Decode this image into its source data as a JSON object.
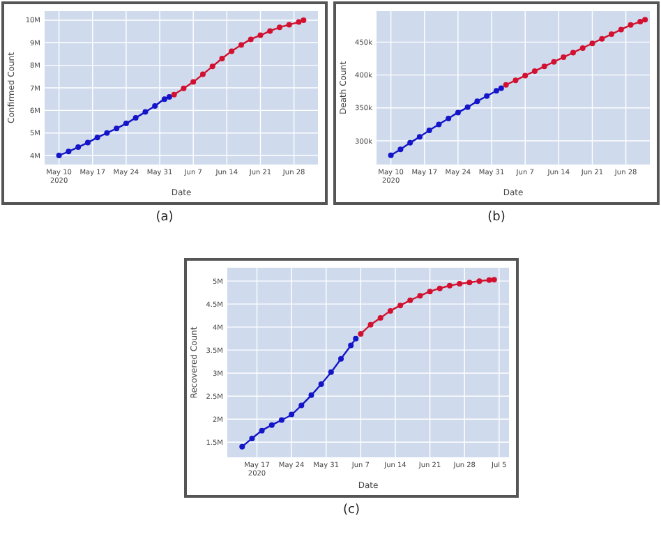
{
  "chart_data": [
    {
      "type": "line",
      "title": "(a)",
      "xlabel": "Date",
      "ylabel": "Confirmed Count",
      "marker": "circle",
      "grid": true,
      "xlim": [
        "2020-05-07",
        "2020-07-03"
      ],
      "xticks": [
        {
          "value": "2020-05-10",
          "label": "May 10\n2020"
        },
        {
          "value": "2020-05-17",
          "label": "May 17"
        },
        {
          "value": "2020-05-24",
          "label": "May 24"
        },
        {
          "value": "2020-05-31",
          "label": "May 31"
        },
        {
          "value": "2020-06-07",
          "label": "Jun 7"
        },
        {
          "value": "2020-06-14",
          "label": "Jun 14"
        },
        {
          "value": "2020-06-21",
          "label": "Jun 21"
        },
        {
          "value": "2020-06-28",
          "label": "Jun 28"
        }
      ],
      "ylim": [
        3600000,
        10400000
      ],
      "yticks": [
        {
          "value": 4000000,
          "label": "4M"
        },
        {
          "value": 5000000,
          "label": "5M"
        },
        {
          "value": 6000000,
          "label": "6M"
        },
        {
          "value": 7000000,
          "label": "7M"
        },
        {
          "value": 8000000,
          "label": "8M"
        },
        {
          "value": 9000000,
          "label": "9M"
        },
        {
          "value": 10000000,
          "label": "10M"
        }
      ],
      "series": [
        {
          "color": "#1414c8",
          "x": [
            "2020-05-10",
            "2020-05-12",
            "2020-05-14",
            "2020-05-16",
            "2020-05-18",
            "2020-05-20",
            "2020-05-22",
            "2020-05-24",
            "2020-05-26",
            "2020-05-28",
            "2020-05-30",
            "2020-06-01",
            "2020-06-02"
          ],
          "values": [
            4000000,
            4180000,
            4370000,
            4570000,
            4800000,
            5000000,
            5200000,
            5420000,
            5670000,
            5930000,
            6200000,
            6500000,
            6600000
          ]
        },
        {
          "color": "#d21030",
          "x": [
            "2020-06-03",
            "2020-06-05",
            "2020-06-07",
            "2020-06-09",
            "2020-06-11",
            "2020-06-13",
            "2020-06-15",
            "2020-06-17",
            "2020-06-19",
            "2020-06-21",
            "2020-06-23",
            "2020-06-25",
            "2020-06-27",
            "2020-06-29",
            "2020-06-30"
          ],
          "values": [
            6700000,
            6980000,
            7260000,
            7600000,
            7950000,
            8300000,
            8620000,
            8900000,
            9150000,
            9330000,
            9520000,
            9680000,
            9800000,
            9920000,
            10000000
          ]
        }
      ]
    },
    {
      "type": "line",
      "title": "(b)",
      "xlabel": "Date",
      "ylabel": "Death Count",
      "marker": "circle",
      "grid": true,
      "xlim": [
        "2020-05-07",
        "2020-07-03"
      ],
      "xticks": [
        {
          "value": "2020-05-10",
          "label": "May 10\n2020"
        },
        {
          "value": "2020-05-17",
          "label": "May 17"
        },
        {
          "value": "2020-05-24",
          "label": "May 24"
        },
        {
          "value": "2020-05-31",
          "label": "May 31"
        },
        {
          "value": "2020-06-07",
          "label": "Jun 7"
        },
        {
          "value": "2020-06-14",
          "label": "Jun 14"
        },
        {
          "value": "2020-06-21",
          "label": "Jun 21"
        },
        {
          "value": "2020-06-28",
          "label": "Jun 28"
        }
      ],
      "ylim": [
        264000,
        497000
      ],
      "yticks": [
        {
          "value": 300000,
          "label": "300k"
        },
        {
          "value": 350000,
          "label": "350k"
        },
        {
          "value": 400000,
          "label": "400k"
        },
        {
          "value": 450000,
          "label": "450k"
        }
      ],
      "series": [
        {
          "color": "#1414c8",
          "x": [
            "2020-05-10",
            "2020-05-12",
            "2020-05-14",
            "2020-05-16",
            "2020-05-18",
            "2020-05-20",
            "2020-05-22",
            "2020-05-24",
            "2020-05-26",
            "2020-05-28",
            "2020-05-30",
            "2020-06-01",
            "2020-06-02"
          ],
          "values": [
            278000,
            287000,
            297000,
            306000,
            316000,
            325000,
            334000,
            343000,
            351000,
            360000,
            368000,
            376000,
            380000
          ]
        },
        {
          "color": "#d21030",
          "x": [
            "2020-06-03",
            "2020-06-05",
            "2020-06-07",
            "2020-06-09",
            "2020-06-11",
            "2020-06-13",
            "2020-06-15",
            "2020-06-17",
            "2020-06-19",
            "2020-06-21",
            "2020-06-23",
            "2020-06-25",
            "2020-06-27",
            "2020-06-29",
            "2020-07-01",
            "2020-07-02"
          ],
          "values": [
            385000,
            392000,
            399000,
            406000,
            413000,
            420000,
            427000,
            434000,
            441000,
            448000,
            455000,
            462000,
            469000,
            476000,
            481000,
            484000
          ]
        }
      ]
    },
    {
      "type": "line",
      "title": "(c)",
      "xlabel": "Date",
      "ylabel": "Recovered Count",
      "marker": "circle",
      "grid": true,
      "xlim": [
        "2020-05-11",
        "2020-07-07"
      ],
      "xticks": [
        {
          "value": "2020-05-17",
          "label": "May 17\n2020"
        },
        {
          "value": "2020-05-24",
          "label": "May 24"
        },
        {
          "value": "2020-05-31",
          "label": "May 31"
        },
        {
          "value": "2020-06-07",
          "label": "Jun 7"
        },
        {
          "value": "2020-06-14",
          "label": "Jun 14"
        },
        {
          "value": "2020-06-21",
          "label": "Jun 21"
        },
        {
          "value": "2020-06-28",
          "label": "Jun 28"
        },
        {
          "value": "2020-07-05",
          "label": "Jul 5"
        }
      ],
      "ylim": [
        1170000,
        5290000
      ],
      "yticks": [
        {
          "value": 1500000,
          "label": "1.5M"
        },
        {
          "value": 2000000,
          "label": "2M"
        },
        {
          "value": 2500000,
          "label": "2.5M"
        },
        {
          "value": 3000000,
          "label": "3M"
        },
        {
          "value": 3500000,
          "label": "3.5M"
        },
        {
          "value": 4000000,
          "label": "4M"
        },
        {
          "value": 4500000,
          "label": "4.5M"
        },
        {
          "value": 5000000,
          "label": "5M"
        }
      ],
      "series": [
        {
          "color": "#1414c8",
          "x": [
            "2020-05-14",
            "2020-05-16",
            "2020-05-18",
            "2020-05-20",
            "2020-05-22",
            "2020-05-24",
            "2020-05-26",
            "2020-05-28",
            "2020-05-30",
            "2020-06-01",
            "2020-06-03",
            "2020-06-05",
            "2020-06-06"
          ],
          "values": [
            1400000,
            1580000,
            1750000,
            1870000,
            1980000,
            2100000,
            2300000,
            2520000,
            2760000,
            3020000,
            3310000,
            3600000,
            3750000
          ]
        },
        {
          "color": "#d21030",
          "x": [
            "2020-06-07",
            "2020-06-09",
            "2020-06-11",
            "2020-06-13",
            "2020-06-15",
            "2020-06-17",
            "2020-06-19",
            "2020-06-21",
            "2020-06-23",
            "2020-06-25",
            "2020-06-27",
            "2020-06-29",
            "2020-07-01",
            "2020-07-03",
            "2020-07-04"
          ],
          "values": [
            3850000,
            4050000,
            4200000,
            4350000,
            4470000,
            4580000,
            4680000,
            4770000,
            4840000,
            4900000,
            4940000,
            4970000,
            5000000,
            5020000,
            5030000
          ]
        }
      ]
    }
  ]
}
